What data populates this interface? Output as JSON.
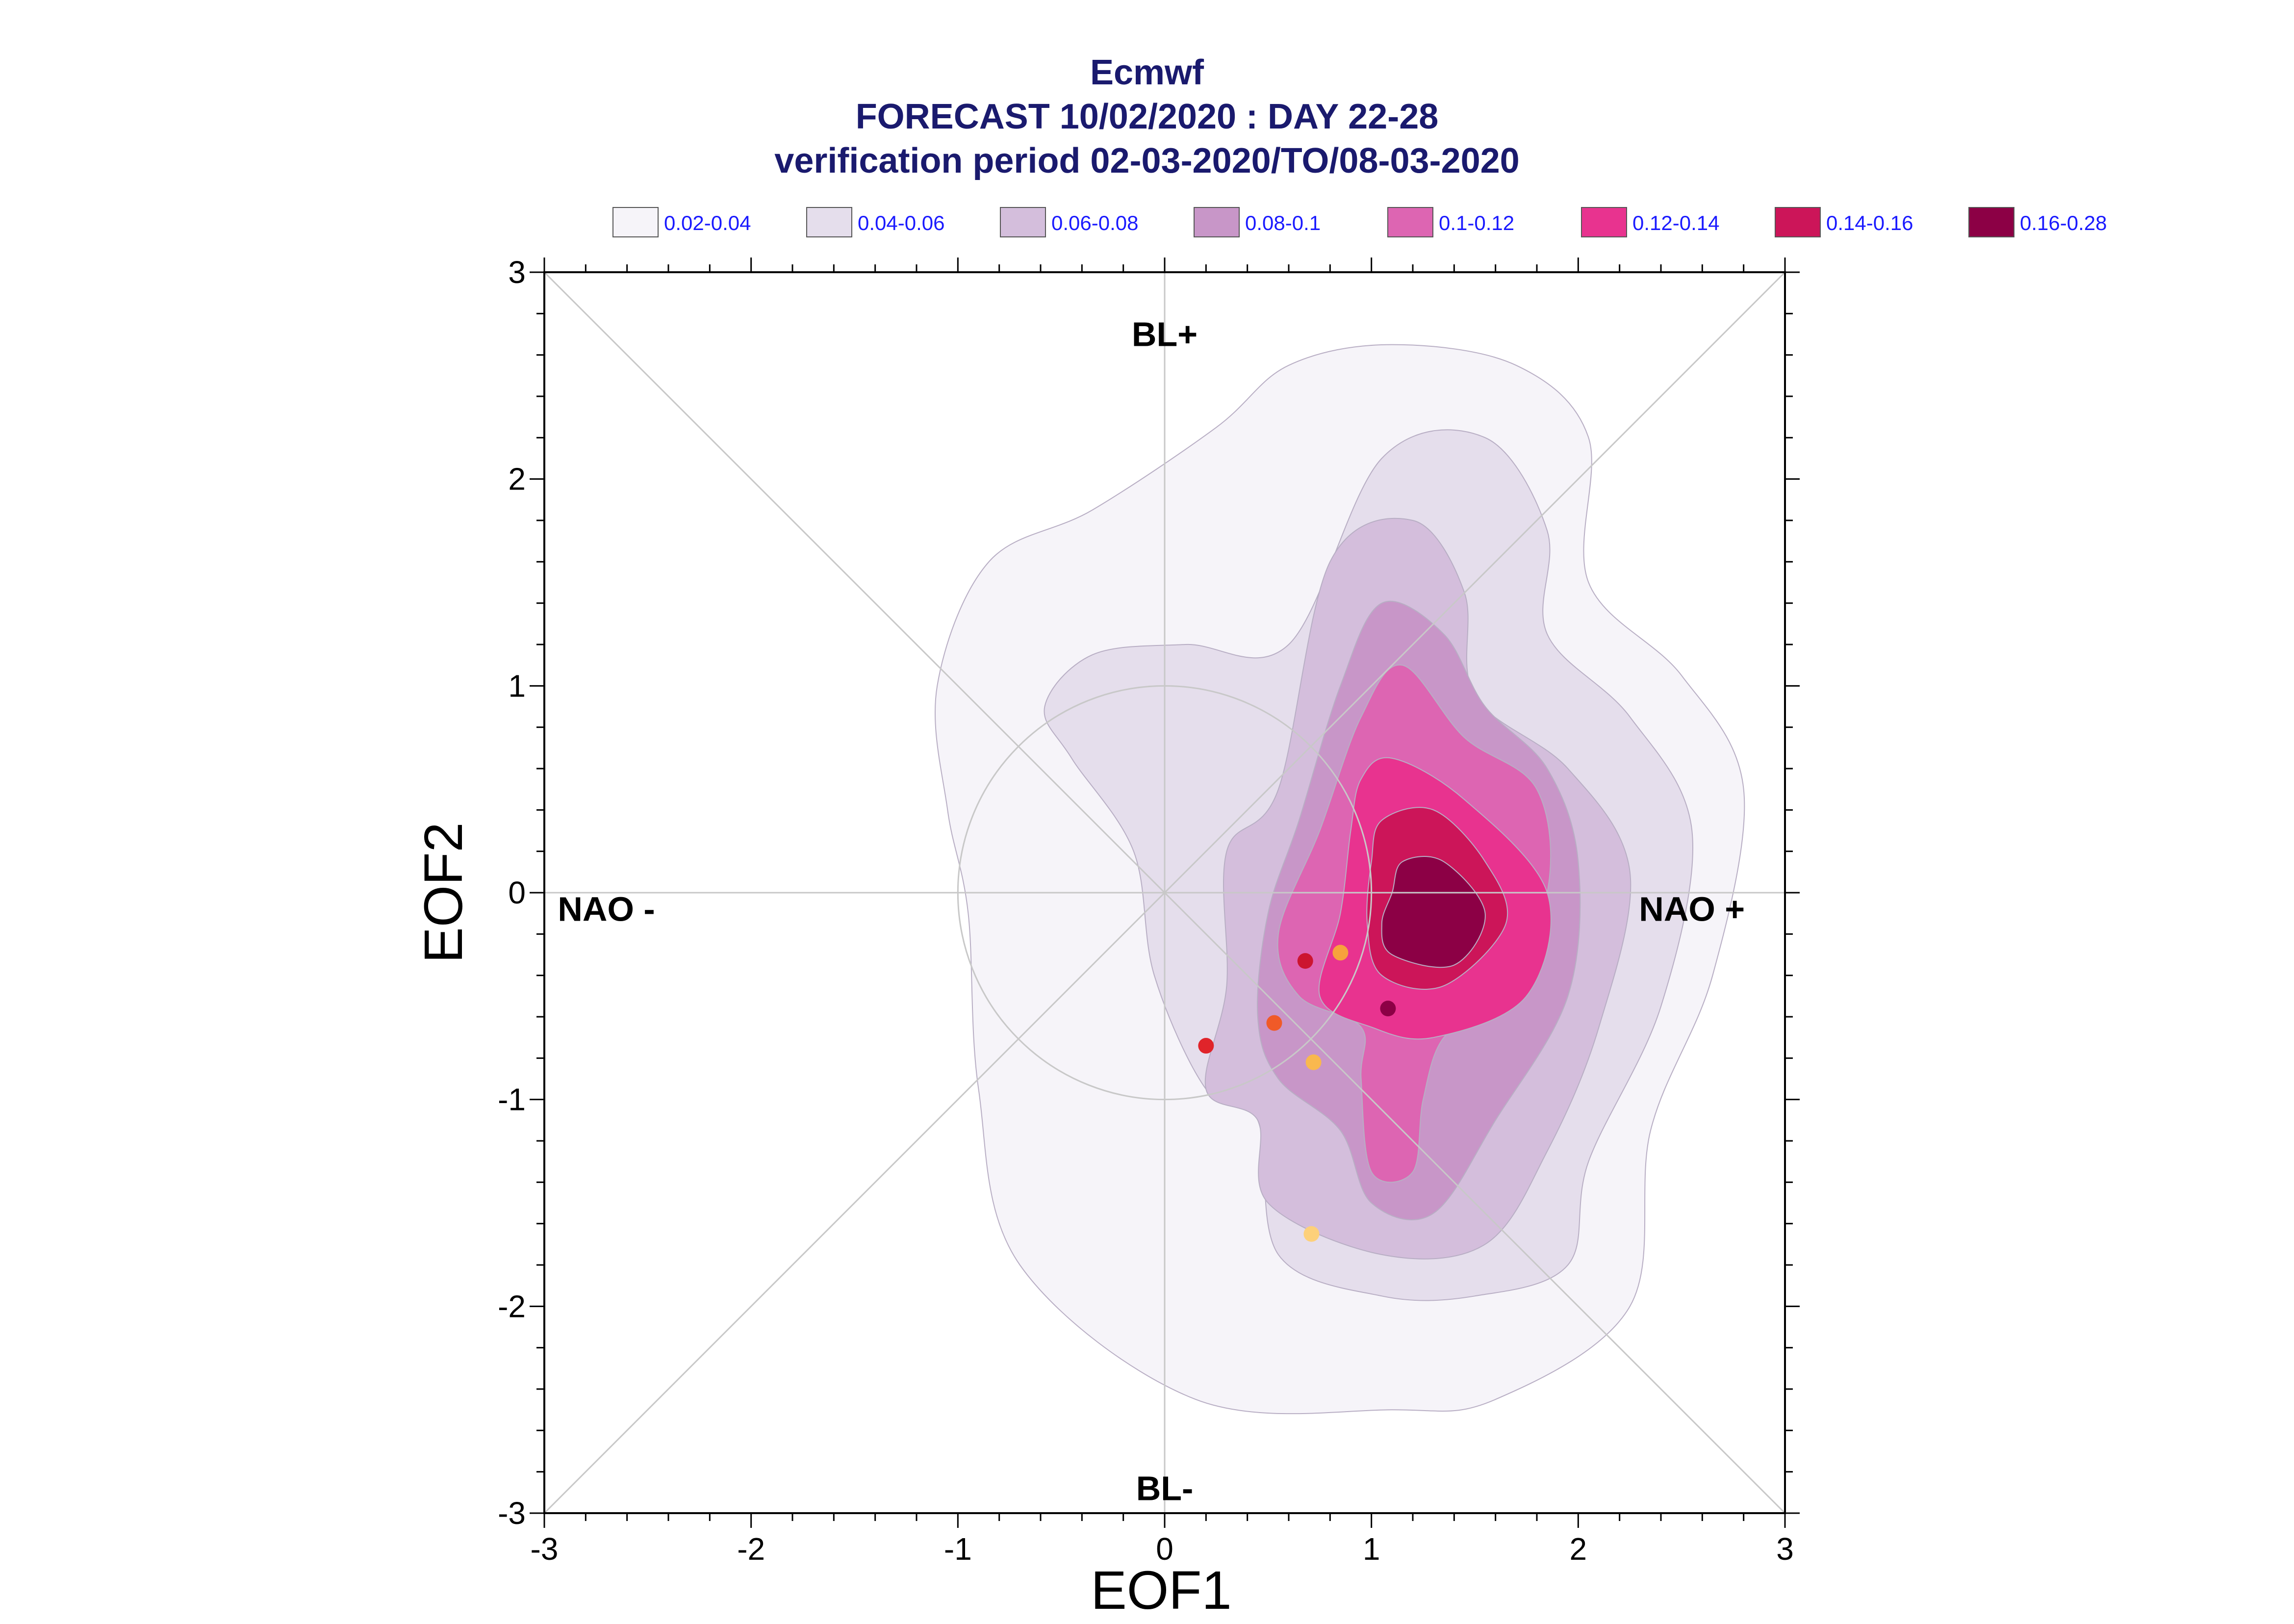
{
  "chart_data": {
    "type": "contour_scatter",
    "title_lines": [
      "Ecmwf",
      "FORECAST 10/02/2020 : DAY 22-28",
      "verification period 02-03-2020/TO/08-03-2020"
    ],
    "xlabel": "EOF1",
    "ylabel": "EOF2",
    "xlim": [
      -3,
      3
    ],
    "ylim": [
      -3,
      3
    ],
    "x_ticks": [
      "-3",
      "-2",
      "-1",
      "0",
      "1",
      "2",
      "3"
    ],
    "y_ticks": [
      "3",
      "2",
      "1",
      "0",
      "-1",
      "-2",
      "-3"
    ],
    "legend": [
      {
        "label": "0.02-0.04",
        "color": "#f6f4f9"
      },
      {
        "label": "0.04-0.06",
        "color": "#e5deec"
      },
      {
        "label": "0.06-0.08",
        "color": "#d4bedc"
      },
      {
        "label": "0.08-0.1",
        "color": "#c896c8"
      },
      {
        "label": "0.1-0.12",
        "color": "#dd65b2"
      },
      {
        "label": "0.12-0.14",
        "color": "#e8338f"
      },
      {
        "label": "0.14-0.16",
        "color": "#cc1559"
      },
      {
        "label": "0.16-0.28",
        "color": "#8c0045"
      }
    ],
    "regime_labels": [
      {
        "text": "BL+",
        "x": 0,
        "y": 2.7
      },
      {
        "text": "BL-",
        "x": 0,
        "y": -2.88
      },
      {
        "text": "NAO -",
        "x": -2.7,
        "y": -0.08
      },
      {
        "text": "NAO +",
        "x": 2.55,
        "y": -0.08
      }
    ],
    "contours": [
      [
        [
          0.6,
          2.55
        ],
        [
          1.1,
          2.65
        ],
        [
          1.7,
          2.55
        ],
        [
          2.05,
          2.2
        ],
        [
          2.05,
          1.5
        ],
        [
          2.5,
          1.05
        ],
        [
          2.8,
          0.5
        ],
        [
          2.65,
          -0.4
        ],
        [
          2.35,
          -1.15
        ],
        [
          2.25,
          -2.0
        ],
        [
          1.6,
          -2.45
        ],
        [
          1.1,
          -2.5
        ],
        [
          0.15,
          -2.45
        ],
        [
          -0.7,
          -1.8
        ],
        [
          -0.9,
          -0.95
        ],
        [
          -0.95,
          -0.1
        ],
        [
          -1.05,
          0.4
        ],
        [
          -1.1,
          1.0
        ],
        [
          -0.85,
          1.6
        ],
        [
          -0.35,
          1.85
        ],
        [
          0.25,
          2.25
        ]
      ],
      [
        [
          0.6,
          1.2
        ],
        [
          1.05,
          2.1
        ],
        [
          1.55,
          2.2
        ],
        [
          1.85,
          1.75
        ],
        [
          1.85,
          1.25
        ],
        [
          2.25,
          0.85
        ],
        [
          2.55,
          0.3
        ],
        [
          2.4,
          -0.55
        ],
        [
          2.05,
          -1.3
        ],
        [
          1.95,
          -1.8
        ],
        [
          1.5,
          -1.95
        ],
        [
          1.05,
          -1.95
        ],
        [
          0.55,
          -1.75
        ],
        [
          0.45,
          -1.1
        ],
        [
          0.2,
          -0.95
        ],
        [
          -0.05,
          -0.4
        ],
        [
          -0.15,
          0.2
        ],
        [
          -0.45,
          0.65
        ],
        [
          -0.58,
          0.9
        ],
        [
          -0.35,
          1.15
        ],
        [
          0.1,
          1.2
        ]
      ],
      [
        [
          0.55,
          0.5
        ],
        [
          0.8,
          1.6
        ],
        [
          1.2,
          1.8
        ],
        [
          1.45,
          1.45
        ],
        [
          1.5,
          0.95
        ],
        [
          1.95,
          0.6
        ],
        [
          2.25,
          0.1
        ],
        [
          2.1,
          -0.65
        ],
        [
          1.85,
          -1.25
        ],
        [
          1.55,
          -1.7
        ],
        [
          1.05,
          -1.75
        ],
        [
          0.5,
          -1.5
        ],
        [
          0.45,
          -1.1
        ],
        [
          0.2,
          -0.95
        ],
        [
          0.3,
          -0.45
        ],
        [
          0.3,
          0.2
        ]
      ],
      [
        [
          0.85,
          1.0
        ],
        [
          1.05,
          1.4
        ],
        [
          1.35,
          1.25
        ],
        [
          1.55,
          0.9
        ],
        [
          1.85,
          0.6
        ],
        [
          2.0,
          0.15
        ],
        [
          1.95,
          -0.5
        ],
        [
          1.6,
          -1.1
        ],
        [
          1.3,
          -1.55
        ],
        [
          1.0,
          -1.5
        ],
        [
          0.85,
          -1.15
        ],
        [
          0.55,
          -0.9
        ],
        [
          0.45,
          -0.6
        ],
        [
          0.5,
          -0.1
        ],
        [
          0.65,
          0.35
        ]
      ],
      [
        [
          0.95,
          0.85
        ],
        [
          1.15,
          1.1
        ],
        [
          1.45,
          0.75
        ],
        [
          1.8,
          0.5
        ],
        [
          1.85,
          0.0
        ],
        [
          1.6,
          -0.55
        ],
        [
          1.35,
          -0.7
        ],
        [
          1.25,
          -1.0
        ],
        [
          1.2,
          -1.35
        ],
        [
          1.0,
          -1.35
        ],
        [
          0.95,
          -0.9
        ],
        [
          0.95,
          -0.65
        ],
        [
          0.65,
          -0.5
        ],
        [
          0.55,
          -0.2
        ],
        [
          0.75,
          0.3
        ]
      ],
      [
        [
          0.95,
          0.55
        ],
        [
          1.1,
          0.65
        ],
        [
          1.45,
          0.45
        ],
        [
          1.85,
          0.0
        ],
        [
          1.75,
          -0.5
        ],
        [
          1.3,
          -0.7
        ],
        [
          1.0,
          -0.65
        ],
        [
          0.75,
          -0.5
        ],
        [
          0.85,
          -0.1
        ],
        [
          0.9,
          0.3
        ]
      ],
      [
        [
          1.05,
          0.35
        ],
        [
          1.3,
          0.4
        ],
        [
          1.55,
          0.15
        ],
        [
          1.65,
          -0.15
        ],
        [
          1.35,
          -0.45
        ],
        [
          1.05,
          -0.4
        ],
        [
          0.98,
          -0.15
        ],
        [
          1.0,
          0.15
        ]
      ],
      [
        [
          1.15,
          0.15
        ],
        [
          1.35,
          0.15
        ],
        [
          1.55,
          -0.1
        ],
        [
          1.4,
          -0.35
        ],
        [
          1.1,
          -0.3
        ],
        [
          1.05,
          -0.15
        ],
        [
          1.1,
          0.0
        ]
      ]
    ],
    "points": [
      {
        "x": 0.68,
        "y": -0.33,
        "color": "#cc1530"
      },
      {
        "x": 0.85,
        "y": -0.29,
        "color": "#f7a23c"
      },
      {
        "x": 1.08,
        "y": -0.56,
        "color": "#8c0045"
      },
      {
        "x": 0.53,
        "y": -0.63,
        "color": "#f05a28"
      },
      {
        "x": 0.2,
        "y": -0.74,
        "color": "#e0242a"
      },
      {
        "x": 0.72,
        "y": -0.82,
        "color": "#f9b84e"
      },
      {
        "x": 0.71,
        "y": -1.65,
        "color": "#fdd07a"
      }
    ]
  }
}
